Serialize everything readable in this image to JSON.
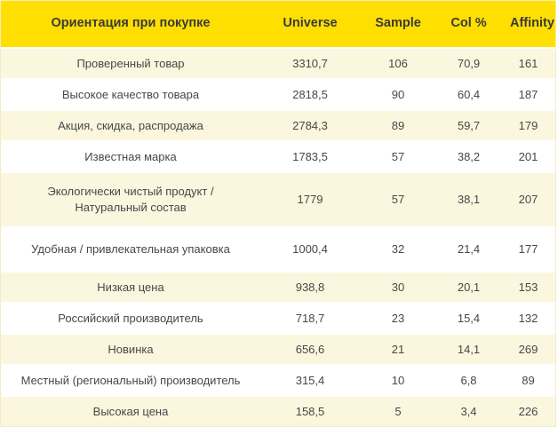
{
  "colors": {
    "header_bg": "#ffdf00",
    "row_alt_bg": "#fbf7df",
    "row_bg": "#ffffff",
    "text": "#474747",
    "header_text": "#3a3a3a"
  },
  "table": {
    "header": {
      "category": "Ориентация при покупке",
      "universe": "Universe",
      "sample": "Sample",
      "col_pct": "Col %",
      "affinity": "Affinity"
    },
    "rows": [
      {
        "label": "Проверенный товар",
        "universe": "3310,7",
        "sample": "106",
        "col_pct": "70,9",
        "affinity": "161"
      },
      {
        "label": "Высокое качество товара",
        "universe": "2818,5",
        "sample": "90",
        "col_pct": "60,4",
        "affinity": "187"
      },
      {
        "label": "Акция, скидка, распродажа",
        "universe": "2784,3",
        "sample": "89",
        "col_pct": "59,7",
        "affinity": "179"
      },
      {
        "label": "Известная марка",
        "universe": "1783,5",
        "sample": "57",
        "col_pct": "38,2",
        "affinity": "201"
      },
      {
        "label": "Экологически чистый продукт / Натуральный состав",
        "universe": "1779",
        "sample": "57",
        "col_pct": "38,1",
        "affinity": "207"
      },
      {
        "label": "Удобная / привлекательная упаковка",
        "universe": "1000,4",
        "sample": "32",
        "col_pct": "21,4",
        "affinity": "177"
      },
      {
        "label": "Низкая цена",
        "universe": "938,8",
        "sample": "30",
        "col_pct": "20,1",
        "affinity": "153"
      },
      {
        "label": "Российский производитель",
        "universe": "718,7",
        "sample": "23",
        "col_pct": "15,4",
        "affinity": "132"
      },
      {
        "label": "Новинка",
        "universe": "656,6",
        "sample": "21",
        "col_pct": "14,1",
        "affinity": "269"
      },
      {
        "label": "Местный (региональный) производитель",
        "universe": "315,4",
        "sample": "10",
        "col_pct": "6,8",
        "affinity": "89"
      },
      {
        "label": "Высокая цена",
        "universe": "158,5",
        "sample": "5",
        "col_pct": "3,4",
        "affinity": "226"
      }
    ]
  },
  "chart_data": {
    "type": "table",
    "title": "Ориентация при покупке",
    "columns": [
      "Ориентация при покупке",
      "Universe",
      "Sample",
      "Col %",
      "Affinity"
    ],
    "rows": [
      [
        "Проверенный товар",
        3310.7,
        106,
        70.9,
        161
      ],
      [
        "Высокое качество товара",
        2818.5,
        90,
        60.4,
        187
      ],
      [
        "Акция, скидка, распродажа",
        2784.3,
        89,
        59.7,
        179
      ],
      [
        "Известная марка",
        1783.5,
        57,
        38.2,
        201
      ],
      [
        "Экологически чистый продукт / Натуральный состав",
        1779,
        57,
        38.1,
        207
      ],
      [
        "Удобная / привлекательная упаковка",
        1000.4,
        32,
        21.4,
        177
      ],
      [
        "Низкая цена",
        938.8,
        30,
        20.1,
        153
      ],
      [
        "Российский производитель",
        718.7,
        23,
        15.4,
        132
      ],
      [
        "Новинка",
        656.6,
        21,
        14.1,
        269
      ],
      [
        "Местный (региональный) производитель",
        315.4,
        10,
        6.8,
        89
      ],
      [
        "Высокая цена",
        158.5,
        5,
        3.4,
        226
      ]
    ]
  }
}
